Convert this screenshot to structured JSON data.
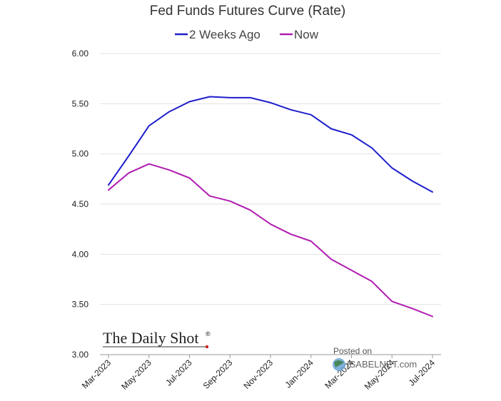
{
  "chart_data": {
    "type": "line",
    "title": "Fed Funds Futures Curve (Rate)",
    "xlabel": "",
    "ylabel": "",
    "ylim": [
      3.0,
      6.0
    ],
    "yticks": [
      "3.00",
      "3.50",
      "4.00",
      "4.50",
      "5.00",
      "5.50",
      "6.00"
    ],
    "x_tick_labels": [
      "Mar-2023",
      "May-2023",
      "Jul-2023",
      "Sep-2023",
      "Nov-2023",
      "Jan-2024",
      "Mar-2024",
      "May-2024",
      "Jul-2024"
    ],
    "categories": [
      "Mar-2023",
      "Apr-2023",
      "May-2023",
      "Jun-2023",
      "Jul-2023",
      "Aug-2023",
      "Sep-2023",
      "Oct-2023",
      "Nov-2023",
      "Dec-2023",
      "Jan-2024",
      "Feb-2024",
      "Mar-2024",
      "Apr-2024",
      "May-2024",
      "Jun-2024",
      "Jul-2024"
    ],
    "series": [
      {
        "name": "2 Weeks Ago",
        "color": "#1f1fcc",
        "values": [
          4.69,
          4.98,
          5.28,
          5.42,
          5.52,
          5.57,
          5.56,
          5.56,
          5.51,
          5.44,
          5.39,
          5.25,
          5.19,
          5.06,
          4.86,
          4.73,
          4.62
        ]
      },
      {
        "name": "Now",
        "color": "#b01cb0",
        "values": [
          4.64,
          4.81,
          4.9,
          4.84,
          4.76,
          4.58,
          4.53,
          4.44,
          4.3,
          4.2,
          4.13,
          3.95,
          3.84,
          3.73,
          3.53,
          3.46,
          3.38
        ]
      }
    ],
    "grid": true,
    "legend_position": "top-center"
  },
  "branding": {
    "logo_text": "The Daily Shot",
    "logo_mark": "®",
    "posted_on": "Posted on",
    "isabelnet": "ISABELNET.com"
  }
}
